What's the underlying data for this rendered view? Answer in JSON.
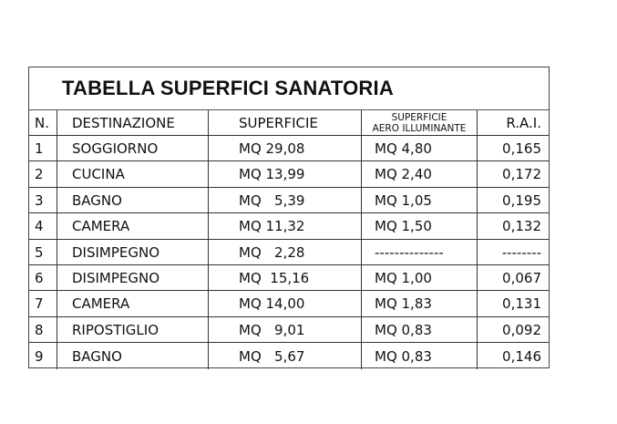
{
  "title": "TABELLA SUPERFICI SANATORIA",
  "headers": {
    "n": "N.",
    "destinazione": "DESTINAZIONE",
    "superficie": "SUPERFICIE",
    "aero_line1": "SUPERFICIE",
    "aero_line2": "AERO ILLUMINANTE",
    "rai": "R.A.I."
  },
  "rows": [
    {
      "n": "1",
      "destinazione": "SOGGIORNO",
      "superficie": "MQ 29,08",
      "aero": "MQ 4,80",
      "rai": "0,165"
    },
    {
      "n": "2",
      "destinazione": "CUCINA",
      "superficie": "MQ 13,99",
      "aero": "MQ 2,40",
      "rai": "0,172"
    },
    {
      "n": "3",
      "destinazione": "BAGNO",
      "superficie": "MQ   5,39",
      "aero": "MQ 1,05",
      "rai": "0,195"
    },
    {
      "n": "4",
      "destinazione": "CAMERA",
      "superficie": "MQ 11,32",
      "aero": "MQ 1,50",
      "rai": "0,132"
    },
    {
      "n": "5",
      "destinazione": "DISIMPEGNO",
      "superficie": "MQ   2,28",
      "aero": "--------------",
      "rai": "--------"
    },
    {
      "n": "6",
      "destinazione": "DISIMPEGNO",
      "superficie": "MQ  15,16",
      "aero": "MQ 1,00",
      "rai": "0,067"
    },
    {
      "n": "7",
      "destinazione": "CAMERA",
      "superficie": "MQ 14,00",
      "aero": "MQ 1,83",
      "rai": "0,131"
    },
    {
      "n": "8",
      "destinazione": "RIPOSTIGLIO",
      "superficie": "MQ   9,01",
      "aero": "MQ 0,83",
      "rai": "0,092"
    },
    {
      "n": "9",
      "destinazione": "BAGNO",
      "superficie": "MQ   5,67",
      "aero": "MQ 0,83",
      "rai": "0,146"
    }
  ]
}
